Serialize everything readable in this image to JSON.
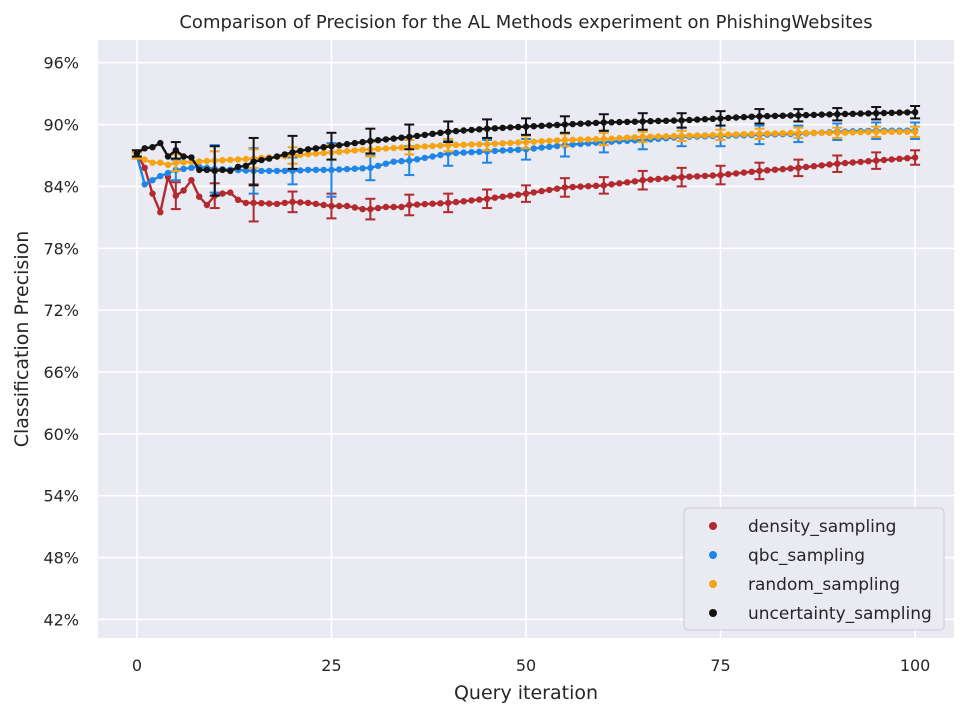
{
  "chart_data": {
    "type": "line",
    "title": "Comparison of Precision for the AL Methods experiment on PhishingWebsites",
    "xlabel": "Query iteration",
    "ylabel": "Classification Precision",
    "xlim": [
      -5,
      105
    ],
    "ylim": [
      40.2,
      98.2
    ],
    "xticks": [
      0,
      25,
      50,
      75,
      100
    ],
    "yticks": [
      42,
      48,
      54,
      60,
      66,
      72,
      78,
      84,
      90,
      96
    ],
    "ytick_suffix": "%",
    "grid": true,
    "background": "#eaeaf2",
    "legend_position": "lower-right",
    "errorbar_every": 5,
    "series": [
      {
        "name": "density_sampling",
        "color": "#b22a2e",
        "anchors": [
          [
            0,
            87.2
          ],
          [
            1,
            85.8
          ],
          [
            2,
            83.3
          ],
          [
            3,
            81.5
          ],
          [
            4,
            84.9
          ],
          [
            5,
            83.1
          ],
          [
            6,
            83.6
          ],
          [
            7,
            84.6
          ],
          [
            8,
            83.0
          ],
          [
            9,
            82.2
          ],
          [
            10,
            83.1
          ],
          [
            11,
            83.3
          ],
          [
            12,
            83.4
          ],
          [
            13,
            82.7
          ],
          [
            14,
            82.4
          ],
          [
            15,
            82.4
          ],
          [
            18,
            82.3
          ],
          [
            20,
            82.5
          ],
          [
            22,
            82.4
          ],
          [
            25,
            82.1
          ],
          [
            27,
            82.1
          ],
          [
            29,
            81.8
          ],
          [
            30,
            81.8
          ],
          [
            32,
            82.0
          ],
          [
            34,
            82.0
          ],
          [
            35,
            82.2
          ],
          [
            40,
            82.4
          ],
          [
            45,
            82.8
          ],
          [
            50,
            83.3
          ],
          [
            55,
            83.9
          ],
          [
            60,
            84.1
          ],
          [
            65,
            84.6
          ],
          [
            70,
            84.9
          ],
          [
            75,
            85.1
          ],
          [
            80,
            85.5
          ],
          [
            85,
            85.8
          ],
          [
            90,
            86.2
          ],
          [
            95,
            86.5
          ],
          [
            100,
            86.8
          ]
        ],
        "error": [
          [
            0,
            0.3
          ],
          [
            5,
            1.3
          ],
          [
            10,
            1.2
          ],
          [
            15,
            1.8
          ],
          [
            20,
            1.0
          ],
          [
            25,
            1.2
          ],
          [
            30,
            1.0
          ],
          [
            35,
            1.0
          ],
          [
            40,
            0.9
          ],
          [
            45,
            0.9
          ],
          [
            50,
            0.8
          ],
          [
            55,
            0.9
          ],
          [
            60,
            0.8
          ],
          [
            65,
            0.9
          ],
          [
            70,
            0.9
          ],
          [
            75,
            0.9
          ],
          [
            80,
            0.8
          ],
          [
            85,
            0.8
          ],
          [
            90,
            0.8
          ],
          [
            95,
            0.8
          ],
          [
            100,
            0.7
          ]
        ]
      },
      {
        "name": "qbc_sampling",
        "color": "#1f86e8",
        "anchors": [
          [
            0,
            87.0
          ],
          [
            1,
            84.2
          ],
          [
            2,
            84.6
          ],
          [
            3,
            85.0
          ],
          [
            4,
            85.3
          ],
          [
            5,
            85.6
          ],
          [
            8,
            85.9
          ],
          [
            10,
            85.7
          ],
          [
            15,
            85.5
          ],
          [
            20,
            85.5
          ],
          [
            22,
            85.6
          ],
          [
            25,
            85.6
          ],
          [
            30,
            85.8
          ],
          [
            33,
            86.4
          ],
          [
            35,
            86.5
          ],
          [
            38,
            86.9
          ],
          [
            40,
            87.2
          ],
          [
            45,
            87.4
          ],
          [
            50,
            87.6
          ],
          [
            55,
            88.0
          ],
          [
            60,
            88.3
          ],
          [
            65,
            88.5
          ],
          [
            70,
            88.8
          ],
          [
            75,
            88.9
          ],
          [
            80,
            89.0
          ],
          [
            85,
            89.1
          ],
          [
            90,
            89.3
          ],
          [
            95,
            89.4
          ],
          [
            100,
            89.4
          ]
        ],
        "error": [
          [
            0,
            0.3
          ],
          [
            5,
            1.0
          ],
          [
            10,
            2.3
          ],
          [
            15,
            2.2
          ],
          [
            20,
            1.3
          ],
          [
            25,
            2.6
          ],
          [
            30,
            1.2
          ],
          [
            35,
            1.4
          ],
          [
            40,
            1.2
          ],
          [
            45,
            1.1
          ],
          [
            50,
            1.0
          ],
          [
            55,
            1.1
          ],
          [
            60,
            1.0
          ],
          [
            65,
            0.9
          ],
          [
            70,
            0.9
          ],
          [
            75,
            1.0
          ],
          [
            80,
            0.9
          ],
          [
            85,
            0.8
          ],
          [
            90,
            0.8
          ],
          [
            95,
            0.8
          ],
          [
            100,
            0.8
          ]
        ]
      },
      {
        "name": "random_sampling",
        "color": "#f7a414",
        "anchors": [
          [
            0,
            87.0
          ],
          [
            1,
            86.6
          ],
          [
            2,
            86.3
          ],
          [
            3,
            86.3
          ],
          [
            4,
            86.1
          ],
          [
            5,
            86.3
          ],
          [
            10,
            86.5
          ],
          [
            15,
            86.7
          ],
          [
            20,
            87.0
          ],
          [
            25,
            87.3
          ],
          [
            30,
            87.6
          ],
          [
            35,
            87.8
          ],
          [
            40,
            88.0
          ],
          [
            45,
            88.1
          ],
          [
            50,
            88.3
          ],
          [
            55,
            88.5
          ],
          [
            60,
            88.6
          ],
          [
            65,
            88.8
          ],
          [
            70,
            88.9
          ],
          [
            75,
            89.0
          ],
          [
            80,
            89.1
          ],
          [
            85,
            89.2
          ],
          [
            90,
            89.2
          ],
          [
            95,
            89.3
          ],
          [
            100,
            89.3
          ]
        ],
        "error": [
          [
            0,
            0.3
          ],
          [
            5,
            0.8
          ],
          [
            10,
            0.9
          ],
          [
            15,
            0.9
          ],
          [
            20,
            0.8
          ],
          [
            25,
            0.7
          ],
          [
            30,
            0.7
          ],
          [
            35,
            0.7
          ],
          [
            40,
            0.6
          ],
          [
            45,
            0.6
          ],
          [
            50,
            0.6
          ],
          [
            55,
            0.6
          ],
          [
            60,
            0.6
          ],
          [
            65,
            0.5
          ],
          [
            70,
            0.5
          ],
          [
            75,
            0.5
          ],
          [
            80,
            0.5
          ],
          [
            85,
            0.5
          ],
          [
            90,
            0.5
          ],
          [
            95,
            0.5
          ],
          [
            100,
            0.5
          ]
        ]
      },
      {
        "name": "uncertainty_sampling",
        "color": "#131313",
        "anchors": [
          [
            0,
            87.2
          ],
          [
            1,
            87.7
          ],
          [
            2,
            87.8
          ],
          [
            3,
            88.2
          ],
          [
            4,
            86.9
          ],
          [
            5,
            87.5
          ],
          [
            6,
            86.9
          ],
          [
            7,
            86.8
          ],
          [
            8,
            85.6
          ],
          [
            9,
            85.6
          ],
          [
            10,
            85.5
          ],
          [
            11,
            85.6
          ],
          [
            12,
            85.5
          ],
          [
            13,
            85.9
          ],
          [
            14,
            86.0
          ],
          [
            15,
            86.4
          ],
          [
            17,
            86.7
          ],
          [
            20,
            87.3
          ],
          [
            22,
            87.6
          ],
          [
            25,
            87.9
          ],
          [
            27,
            88.1
          ],
          [
            30,
            88.4
          ],
          [
            35,
            88.8
          ],
          [
            40,
            89.3
          ],
          [
            45,
            89.6
          ],
          [
            50,
            89.8
          ],
          [
            55,
            90.0
          ],
          [
            60,
            90.2
          ],
          [
            65,
            90.3
          ],
          [
            70,
            90.4
          ],
          [
            75,
            90.6
          ],
          [
            80,
            90.8
          ],
          [
            85,
            90.9
          ],
          [
            90,
            91.0
          ],
          [
            95,
            91.1
          ],
          [
            100,
            91.2
          ]
        ],
        "error": [
          [
            0,
            0.3
          ],
          [
            5,
            0.8
          ],
          [
            10,
            2.4
          ],
          [
            15,
            2.3
          ],
          [
            20,
            1.6
          ],
          [
            25,
            1.3
          ],
          [
            30,
            1.2
          ],
          [
            35,
            1.2
          ],
          [
            40,
            1.0
          ],
          [
            45,
            0.9
          ],
          [
            50,
            0.8
          ],
          [
            55,
            0.8
          ],
          [
            60,
            0.8
          ],
          [
            65,
            0.8
          ],
          [
            70,
            0.7
          ],
          [
            75,
            0.7
          ],
          [
            80,
            0.7
          ],
          [
            85,
            0.6
          ],
          [
            90,
            0.6
          ],
          [
            95,
            0.6
          ],
          [
            100,
            0.6
          ]
        ]
      }
    ]
  }
}
